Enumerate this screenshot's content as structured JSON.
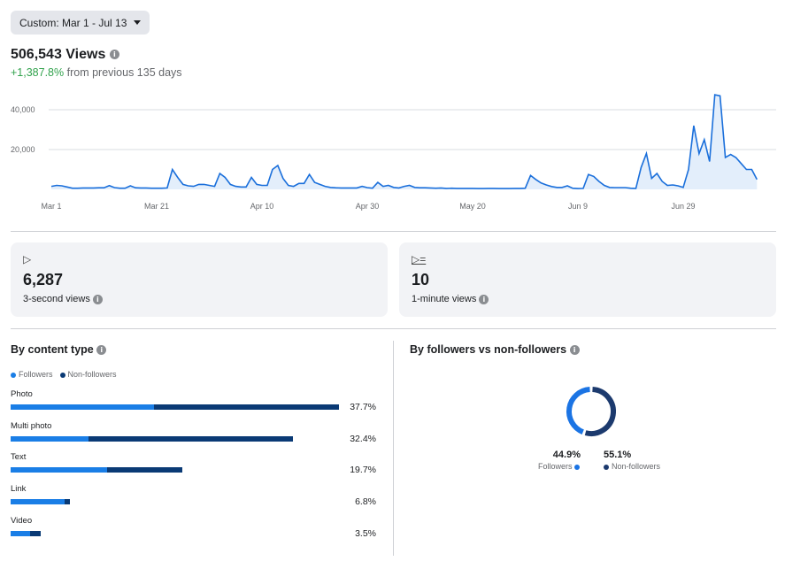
{
  "date_range": {
    "label": "Custom: Mar 1 - Jul 13",
    "icon": "caret-down-icon"
  },
  "summary": {
    "total": "506,543 Views",
    "change": "+1,387.8%",
    "change_suffix": "from previous 135 days"
  },
  "chart_data": {
    "type": "area",
    "x_range": [
      "Mar 1",
      "Jul 13"
    ],
    "x_tick_labels": [
      "Mar 1",
      "Mar 21",
      "Apr 10",
      "Apr 30",
      "May 20",
      "Jun 9",
      "Jun 29"
    ],
    "y_tick_labels": [
      "20,000",
      "40,000"
    ],
    "ylim": [
      0,
      48000
    ],
    "grid": true,
    "colors": {
      "line": "#1a6fdb",
      "fill": "#e3eefb"
    },
    "values": [
      1500,
      2000,
      1800,
      1200,
      600,
      600,
      700,
      700,
      700,
      800,
      800,
      1900,
      900,
      600,
      600,
      1800,
      800,
      700,
      700,
      600,
      600,
      600,
      700,
      10000,
      6000,
      2500,
      1800,
      1500,
      2500,
      2500,
      2000,
      1500,
      8000,
      6000,
      2500,
      1500,
      1200,
      1200,
      6000,
      2500,
      2000,
      2000,
      10000,
      12000,
      5500,
      2000,
      1500,
      3000,
      3000,
      7500,
      3500,
      2500,
      1500,
      1000,
      800,
      700,
      700,
      700,
      700,
      1500,
      900,
      600,
      3500,
      1500,
      2000,
      1000,
      700,
      1500,
      2000,
      1000,
      800,
      800,
      700,
      600,
      700,
      500,
      600,
      500,
      500,
      500,
      500,
      400,
      400,
      500,
      500,
      400,
      400,
      400,
      500,
      500,
      600,
      7000,
      5000,
      3200,
      2200,
      1400,
      1000,
      1000,
      1800,
      600,
      400,
      500,
      7500,
      6500,
      4000,
      2000,
      1000,
      900,
      900,
      900,
      600,
      500,
      11000,
      18000,
      5500,
      8000,
      4000,
      2000,
      2200,
      1800,
      1000,
      10000,
      32000,
      18000,
      25000,
      14000,
      47500,
      47000,
      16000,
      17500,
      16000,
      13000,
      10000,
      10000,
      5000
    ]
  },
  "cards": [
    {
      "icon": "play-icon",
      "glyph": "▷",
      "value": "6,287",
      "label": "3-second views"
    },
    {
      "icon": "play-list-icon",
      "glyph": "▷=",
      "value": "10",
      "label": "1-minute views"
    }
  ],
  "content_type": {
    "title": "By content type",
    "legend": [
      "Followers",
      "Non-followers"
    ],
    "colors": {
      "followers": "#1a7ee6",
      "non_followers": "#0a3a75"
    },
    "rows": [
      {
        "label": "Photo",
        "total": "37.7%",
        "followers": 16.5,
        "non_followers": 21.2
      },
      {
        "label": "Multi photo",
        "total": "32.4%",
        "followers": 8.9,
        "non_followers": 23.5
      },
      {
        "label": "Text",
        "total": "19.7%",
        "followers": 11.1,
        "non_followers": 8.6
      },
      {
        "label": "Link",
        "total": "6.8%",
        "followers": 6.2,
        "non_followers": 0.6
      },
      {
        "label": "Video",
        "total": "3.5%",
        "followers": 2.2,
        "non_followers": 1.3
      }
    ]
  },
  "followers_split": {
    "title": "By followers vs non-followers",
    "followers": {
      "label": "Followers",
      "value": "44.9%",
      "pct": 44.9,
      "color": "#1b74e4"
    },
    "non_followers": {
      "label": "Non-followers",
      "value": "55.1%",
      "pct": 55.1,
      "color": "#1c3a6e"
    }
  }
}
